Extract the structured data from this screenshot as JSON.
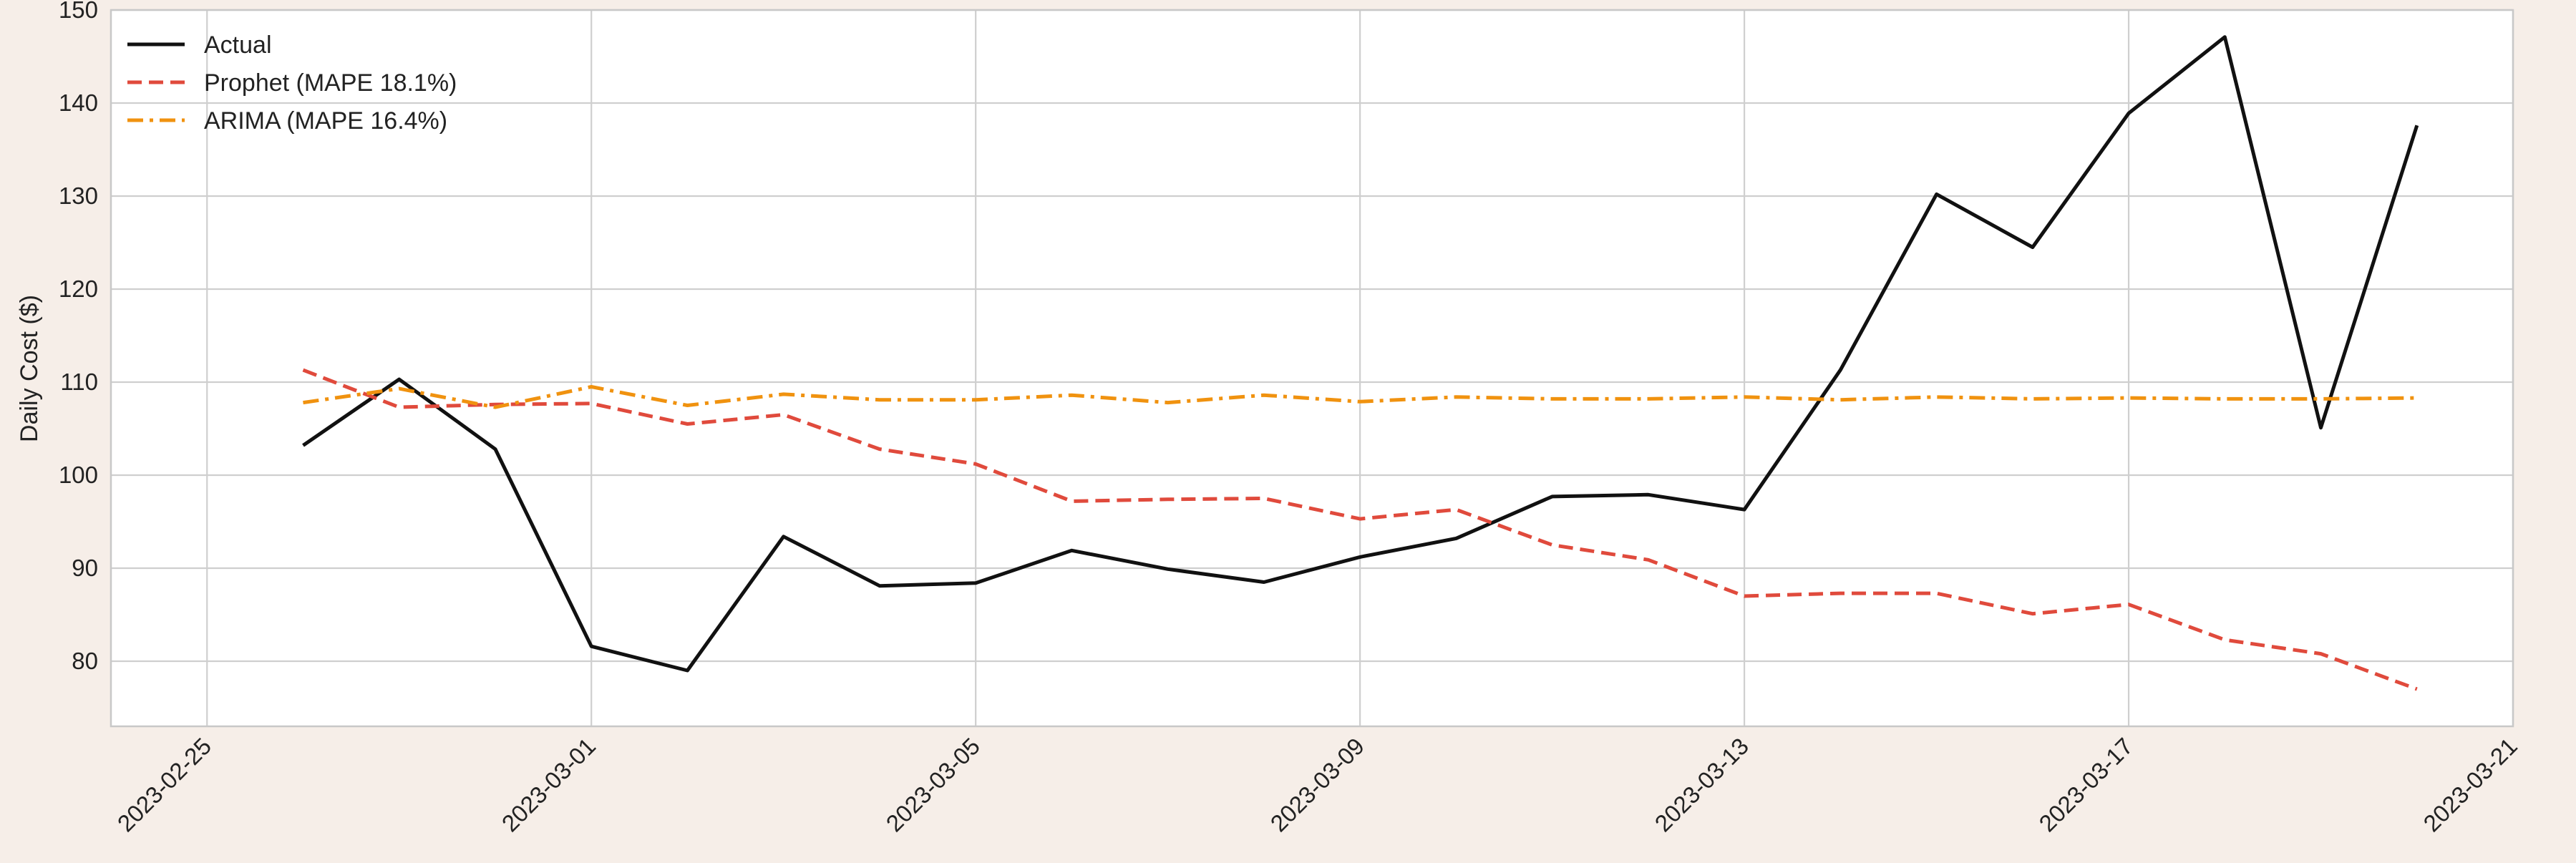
{
  "chart_data": {
    "type": "line",
    "title": "",
    "xlabel": "",
    "ylabel": "Daily Cost ($)",
    "xlim": [
      "2023-02-24",
      "2023-03-21"
    ],
    "ylim": [
      73,
      150
    ],
    "x_ticks": [
      "2023-02-25",
      "2023-03-01",
      "2023-03-05",
      "2023-03-09",
      "2023-03-13",
      "2023-03-17",
      "2023-03-21"
    ],
    "y_ticks": [
      80,
      90,
      100,
      110,
      120,
      130,
      140,
      150
    ],
    "grid": true,
    "legend_position": "top-left",
    "x": [
      "2023-02-26",
      "2023-02-27",
      "2023-02-28",
      "2023-03-01",
      "2023-03-02",
      "2023-03-03",
      "2023-03-04",
      "2023-03-05",
      "2023-03-06",
      "2023-03-07",
      "2023-03-08",
      "2023-03-09",
      "2023-03-10",
      "2023-03-11",
      "2023-03-12",
      "2023-03-13",
      "2023-03-14",
      "2023-03-15",
      "2023-03-16",
      "2023-03-17",
      "2023-03-18",
      "2023-03-19",
      "2023-03-20"
    ],
    "series": [
      {
        "name": "Actual",
        "color": "#111111",
        "style": "solid",
        "values": [
          103.2,
          110.3,
          102.8,
          81.6,
          79.0,
          93.4,
          88.1,
          88.4,
          91.9,
          89.9,
          88.5,
          91.2,
          93.2,
          97.7,
          97.9,
          96.3,
          111.3,
          130.2,
          124.5,
          138.9,
          147.1,
          105.1,
          137.6
        ]
      },
      {
        "name": "Prophet (MAPE 18.1%)",
        "color": "#e04a3c",
        "style": "dashed",
        "values": [
          111.3,
          107.3,
          107.6,
          107.7,
          105.5,
          106.5,
          102.8,
          101.2,
          97.2,
          97.4,
          97.5,
          95.3,
          96.3,
          92.5,
          90.9,
          87.0,
          87.3,
          87.3,
          85.1,
          86.1,
          82.3,
          80.8,
          77.0
        ]
      },
      {
        "name": "ARIMA (MAPE 16.4%)",
        "color": "#f0920f",
        "style": "dashdot",
        "values": [
          107.8,
          109.3,
          107.3,
          109.5,
          107.5,
          108.7,
          108.1,
          108.1,
          108.6,
          107.8,
          108.6,
          107.9,
          108.4,
          108.2,
          108.2,
          108.4,
          108.1,
          108.4,
          108.2,
          108.3,
          108.2,
          108.2,
          108.3
        ]
      }
    ]
  }
}
